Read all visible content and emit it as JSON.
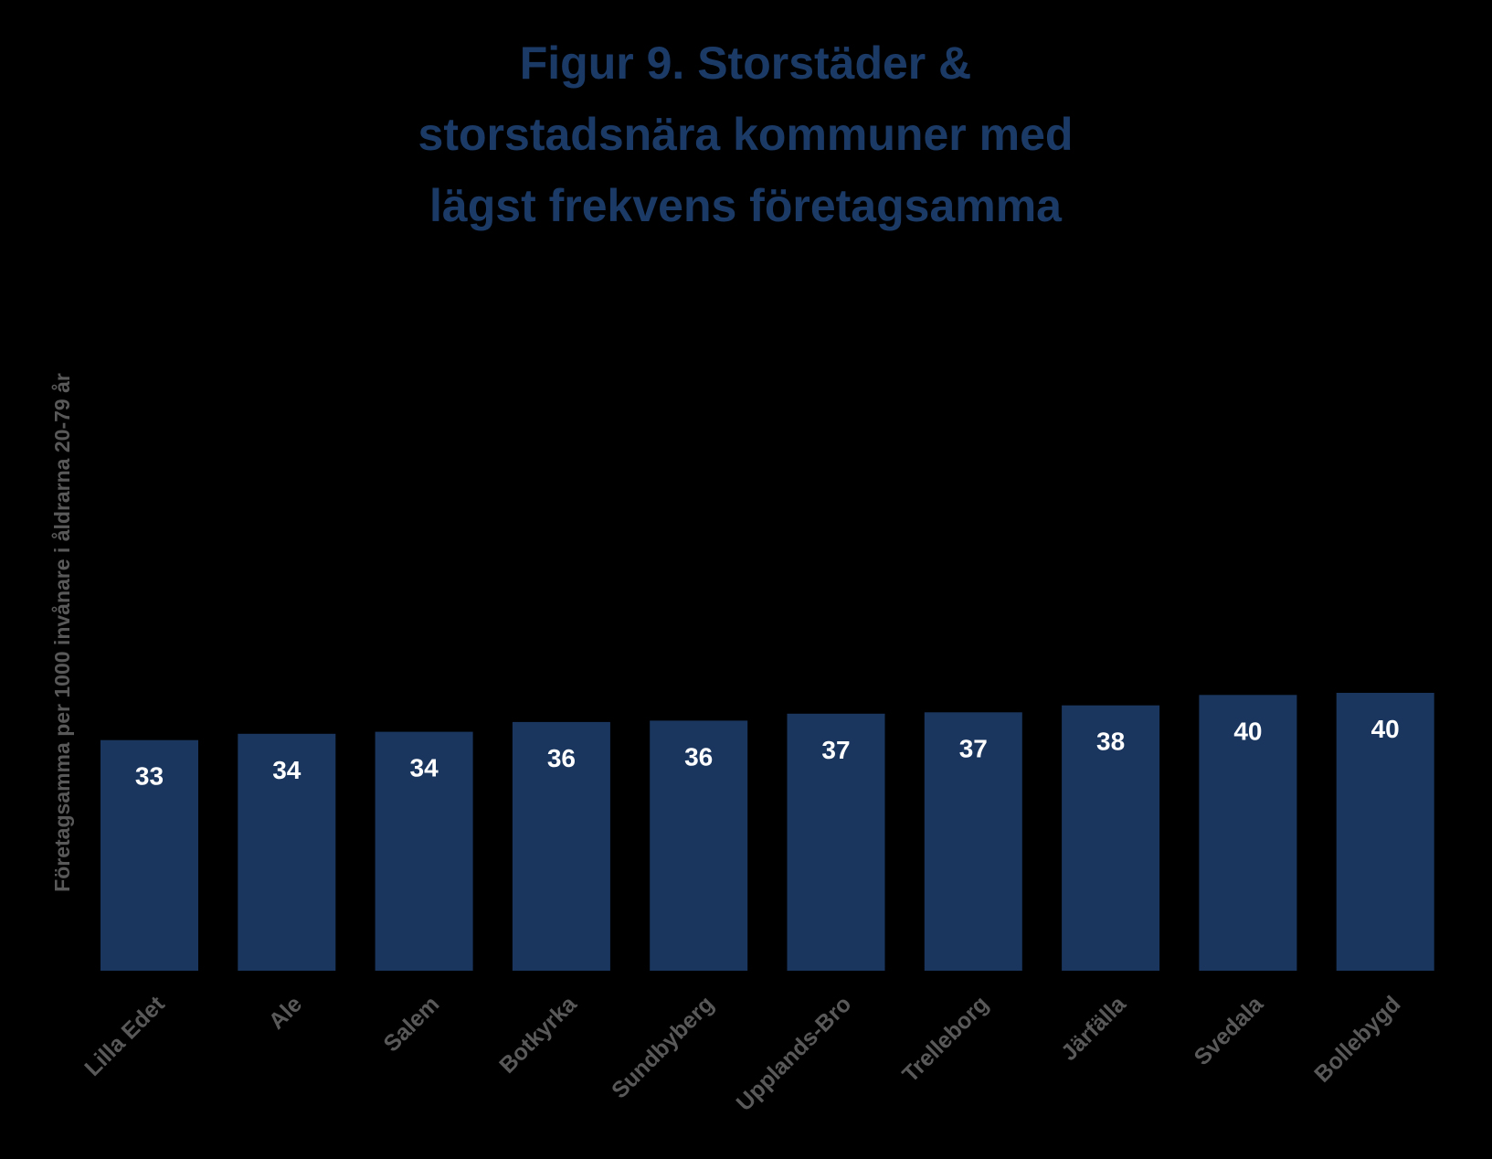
{
  "chart_data": {
    "type": "bar",
    "title": "Figur 9. Storstäder & storstadsnära kommuner med lägst frekvens företagsamma",
    "title_lines": [
      "Figur 9. Storstäder &",
      "storstadsnära kommuner med",
      "lägst frekvens företagsamma"
    ],
    "xlabel": "",
    "ylabel": "Företagsamma per 1000 invånare i åldrarna 20-79 år",
    "categories": [
      "Lilla Edet",
      "Ale",
      "Salem",
      "Botkyrka",
      "Sundbyberg",
      "Upplands-Bro",
      "Trelleborg",
      "Järfälla",
      "Svedala",
      "Bollebygd"
    ],
    "values": [
      33.2,
      34.1,
      34.4,
      35.8,
      36.0,
      37.0,
      37.2,
      38.2,
      39.7,
      40.0
    ],
    "data_labels": [
      "33",
      "34",
      "34",
      "36",
      "36",
      "37",
      "37",
      "38",
      "40",
      "40"
    ],
    "ylim": [
      0,
      120
    ],
    "grid": false,
    "legend": "none",
    "colors": {
      "background": "#000000",
      "bar": "#1a365f",
      "title": "#1b3a66",
      "data_label": "#ffffff",
      "axis_text": "#595959"
    }
  }
}
